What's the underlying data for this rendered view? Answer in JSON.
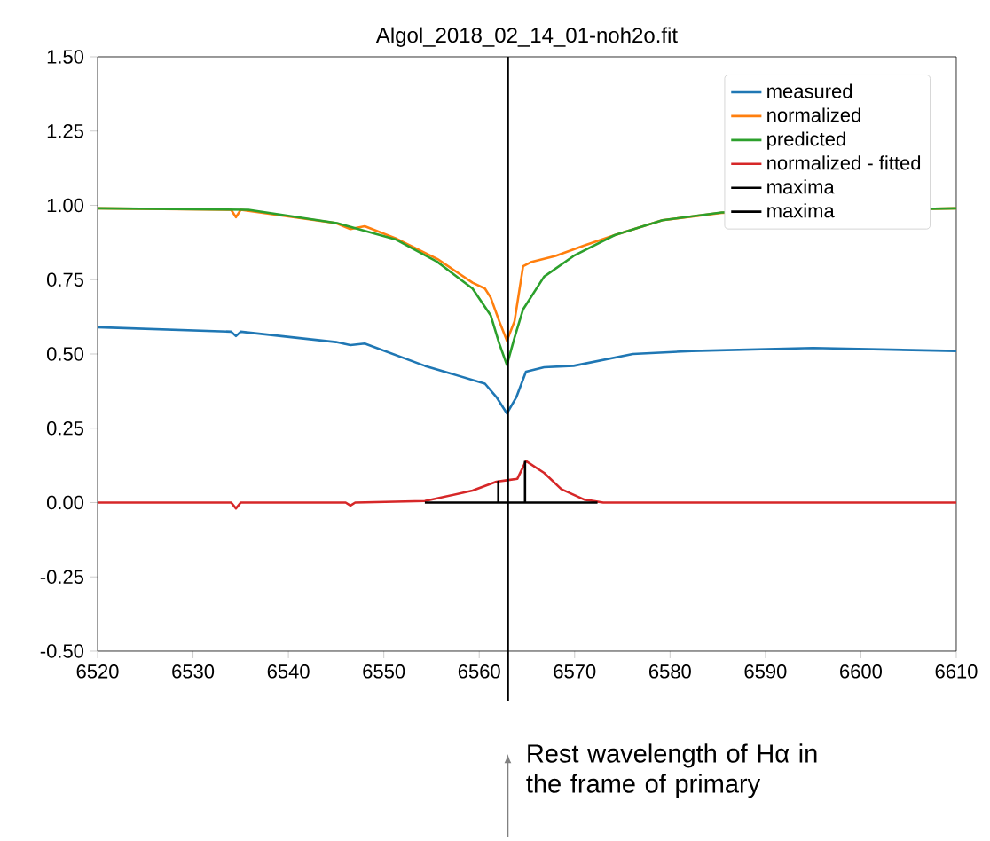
{
  "chart_data": {
    "type": "line",
    "title": "Algol_2018_02_14_01-noh2o.fit",
    "xlim": [
      6520,
      6610
    ],
    "xticks": [
      6520,
      6530,
      6540,
      6550,
      6560,
      6570,
      6580,
      6590,
      6600,
      6610
    ],
    "ylim": [
      -0.5,
      1.5
    ],
    "yticks": [
      {
        "value": -0.5,
        "label": "-0.50"
      },
      -0.25,
      {
        "value": 0,
        "label": "0.00"
      },
      0.25,
      {
        "value": 0.5,
        "label": "0.50"
      },
      0.75,
      {
        "value": 1,
        "label": "1.00"
      },
      1.25,
      {
        "value": 1.5,
        "label": "1.50"
      }
    ],
    "grid": false,
    "legend": "top right",
    "marker": "none",
    "line_style": "solid",
    "series": [
      {
        "name": "measured",
        "color": "#1f77b4",
        "x": [
          6520,
          6534,
          6534.5,
          6535,
          6545,
          6546.5,
          6548,
          6554.3,
          6560.6,
          6561.8,
          6562.9,
          6563.9,
          6564.9,
          6566.8,
          6569.9,
          6576.1,
          6582.3,
          6595,
          6610
        ],
        "values": [
          0.59,
          0.575,
          0.56,
          0.575,
          0.54,
          0.53,
          0.535,
          0.46,
          0.4,
          0.355,
          0.3,
          0.355,
          0.44,
          0.455,
          0.46,
          0.5,
          0.51,
          0.52,
          0.51
        ]
      },
      {
        "name": "normalized",
        "color": "#ff7f0e",
        "x": [
          6520,
          6534,
          6534.5,
          6535,
          6545,
          6546.5,
          6548,
          6551.2,
          6555.6,
          6559.3,
          6560.6,
          6561.2,
          6562.1,
          6562.9,
          6563.7,
          6564.6,
          6565.5,
          6568,
          6571,
          6574.2,
          6579.2,
          6585.4,
          6595,
          6610
        ],
        "values": [
          0.99,
          0.985,
          0.96,
          0.985,
          0.94,
          0.92,
          0.93,
          0.89,
          0.82,
          0.74,
          0.72,
          0.69,
          0.61,
          0.545,
          0.61,
          0.795,
          0.81,
          0.83,
          0.865,
          0.9,
          0.95,
          0.975,
          null,
          0.99
        ]
      },
      {
        "name": "predicted",
        "color": "#2ca02c",
        "x": [
          6520,
          6535.8,
          6545.1,
          6551.2,
          6555.6,
          6559.3,
          6561.2,
          6562.1,
          6562.9,
          6563.7,
          6564.6,
          6566.8,
          6569.9,
          6574.2,
          6579.2,
          6585.4,
          6595,
          6610
        ],
        "values": [
          0.99,
          0.985,
          0.94,
          0.886,
          0.81,
          0.72,
          0.63,
          0.535,
          0.463,
          0.555,
          0.65,
          0.76,
          0.83,
          0.9,
          0.95,
          0.976,
          null,
          0.99
        ]
      },
      {
        "name": "normalized - fitted",
        "color": "#d62728",
        "x": [
          6520,
          6534,
          6534.5,
          6535,
          6546,
          6546.5,
          6547,
          6554.3,
          6559.3,
          6561.8,
          6562.9,
          6564,
          6564.9,
          6566.8,
          6568.6,
          6571,
          6573,
          6610
        ],
        "values": [
          0,
          0,
          -0.02,
          0,
          0,
          -0.01,
          0,
          0.005,
          0.04,
          0.07,
          0.075,
          0.08,
          0.14,
          0.1,
          0.045,
          0.01,
          0,
          0
        ]
      },
      {
        "name": "maxima",
        "color": "#000000",
        "x": [
          6554.3,
          6562,
          6562,
          6562,
          6572.4
        ],
        "values": [
          0,
          0,
          0.07,
          0,
          0
        ]
      },
      {
        "name": "maxima",
        "color": "#000000",
        "x": [
          6564.8,
          6564.8
        ],
        "values": [
          0,
          0.14
        ]
      }
    ],
    "ref_lines": [
      {
        "axis": "x",
        "value": 6563,
        "color": "#000000"
      }
    ],
    "annotations": [
      "Rest wavelength of Hα in the frame of primary"
    ]
  }
}
